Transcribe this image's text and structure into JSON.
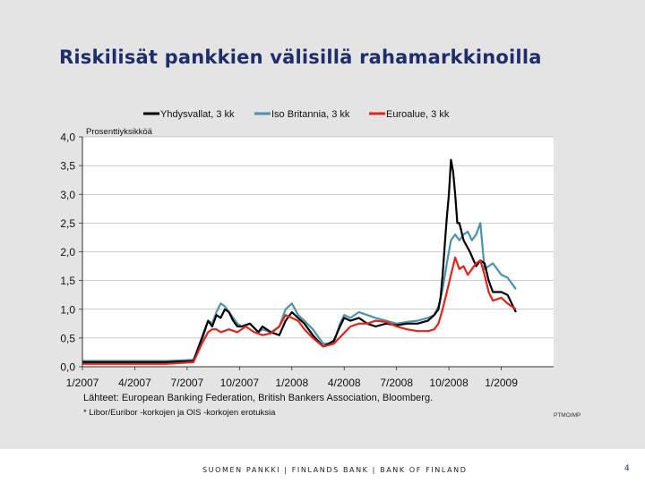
{
  "slide": {
    "title": "Riskilisät pankkien välisillä rahamarkkinoilla",
    "footer": "SUOMEN PANKKI | FINLANDS BANK | BANK OF FINLAND",
    "page_number": "4"
  },
  "chart_data": {
    "type": "line",
    "ylabel": "Prosenttiyksikköä",
    "ylim": [
      0,
      4
    ],
    "yticks": [
      "0,0",
      "0,5",
      "1,0",
      "1,5",
      "2,0",
      "2,5",
      "3,0",
      "3,5",
      "4,0"
    ],
    "xlim": [
      2007.0,
      2009.25
    ],
    "xticks": [
      {
        "x": 2007.0,
        "label": "1/2007"
      },
      {
        "x": 2007.25,
        "label": "4/2007"
      },
      {
        "x": 2007.5,
        "label": "7/2007"
      },
      {
        "x": 2007.75,
        "label": "10/2007"
      },
      {
        "x": 2008.0,
        "label": "1/2008"
      },
      {
        "x": 2008.25,
        "label": "4/2008"
      },
      {
        "x": 2008.5,
        "label": "7/2008"
      },
      {
        "x": 2008.75,
        "label": "10/2008"
      },
      {
        "x": 2009.0,
        "label": "1/2009"
      }
    ],
    "grid": "horizontal",
    "legend": "top",
    "series": [
      {
        "name": "Yhdysvallat, 3 kk",
        "color": "#000000",
        "x": [
          2007.0,
          2007.1,
          2007.25,
          2007.4,
          2007.53,
          2007.57,
          2007.6,
          2007.62,
          2007.64,
          2007.66,
          2007.68,
          2007.7,
          2007.72,
          2007.74,
          2007.76,
          2007.8,
          2007.84,
          2007.86,
          2007.9,
          2007.94,
          2007.97,
          2008.0,
          2008.03,
          2008.06,
          2008.1,
          2008.15,
          2008.2,
          2008.23,
          2008.25,
          2008.28,
          2008.32,
          2008.36,
          2008.4,
          2008.45,
          2008.5,
          2008.55,
          2008.6,
          2008.65,
          2008.68,
          2008.7,
          2008.71,
          2008.72,
          2008.73,
          2008.74,
          2008.75,
          2008.76,
          2008.77,
          2008.78,
          2008.79,
          2008.8,
          2008.82,
          2008.85,
          2008.88,
          2008.9,
          2008.92,
          2008.94,
          2008.96,
          2009.0,
          2009.03,
          2009.05,
          2009.07
        ],
        "values": [
          0.08,
          0.08,
          0.08,
          0.08,
          0.1,
          0.5,
          0.8,
          0.7,
          0.9,
          0.85,
          1.0,
          0.95,
          0.8,
          0.7,
          0.7,
          0.75,
          0.6,
          0.7,
          0.6,
          0.55,
          0.8,
          0.95,
          0.85,
          0.75,
          0.55,
          0.35,
          0.45,
          0.7,
          0.85,
          0.8,
          0.85,
          0.75,
          0.7,
          0.75,
          0.72,
          0.75,
          0.75,
          0.8,
          0.9,
          1.0,
          1.2,
          1.6,
          2.1,
          2.6,
          3.0,
          3.6,
          3.4,
          3.0,
          2.5,
          2.5,
          2.2,
          2.0,
          1.75,
          1.85,
          1.8,
          1.5,
          1.3,
          1.3,
          1.25,
          1.1,
          0.95
        ]
      },
      {
        "name": "Iso Britannia, 3 kk",
        "color": "#4a93a8",
        "x": [
          2007.0,
          2007.1,
          2007.25,
          2007.4,
          2007.53,
          2007.57,
          2007.6,
          2007.62,
          2007.64,
          2007.66,
          2007.68,
          2007.7,
          2007.72,
          2007.74,
          2007.76,
          2007.8,
          2007.84,
          2007.86,
          2007.9,
          2007.94,
          2007.97,
          2008.0,
          2008.03,
          2008.06,
          2008.1,
          2008.15,
          2008.2,
          2008.23,
          2008.25,
          2008.28,
          2008.32,
          2008.36,
          2008.4,
          2008.45,
          2008.5,
          2008.55,
          2008.6,
          2008.65,
          2008.68,
          2008.7,
          2008.72,
          2008.74,
          2008.76,
          2008.78,
          2008.8,
          2008.82,
          2008.84,
          2008.86,
          2008.88,
          2008.9,
          2008.92,
          2008.94,
          2008.96,
          2009.0,
          2009.03,
          2009.05,
          2009.07
        ],
        "values": [
          0.1,
          0.1,
          0.1,
          0.1,
          0.12,
          0.45,
          0.8,
          0.75,
          0.95,
          1.1,
          1.05,
          0.95,
          0.85,
          0.75,
          0.7,
          0.75,
          0.6,
          0.65,
          0.6,
          0.7,
          1.0,
          1.1,
          0.9,
          0.8,
          0.65,
          0.4,
          0.4,
          0.75,
          0.9,
          0.85,
          0.95,
          0.9,
          0.85,
          0.8,
          0.75,
          0.78,
          0.8,
          0.85,
          0.9,
          1.05,
          1.35,
          1.8,
          2.2,
          2.3,
          2.2,
          2.3,
          2.35,
          2.2,
          2.3,
          2.5,
          1.7,
          1.75,
          1.8,
          1.6,
          1.55,
          1.45,
          1.35
        ]
      },
      {
        "name": "Euroalue, 3 kk",
        "color": "#e0251d",
        "x": [
          2007.0,
          2007.1,
          2007.25,
          2007.4,
          2007.53,
          2007.57,
          2007.6,
          2007.62,
          2007.64,
          2007.66,
          2007.7,
          2007.74,
          2007.78,
          2007.82,
          2007.86,
          2007.9,
          2007.94,
          2007.97,
          2008.0,
          2008.03,
          2008.06,
          2008.1,
          2008.15,
          2008.2,
          2008.24,
          2008.28,
          2008.32,
          2008.36,
          2008.4,
          2008.45,
          2008.5,
          2008.55,
          2008.6,
          2008.65,
          2008.68,
          2008.7,
          2008.72,
          2008.74,
          2008.76,
          2008.78,
          2008.8,
          2008.82,
          2008.84,
          2008.86,
          2008.88,
          2008.9,
          2008.92,
          2008.94,
          2008.96,
          2009.0,
          2009.03,
          2009.05,
          2009.07
        ],
        "values": [
          0.05,
          0.05,
          0.05,
          0.05,
          0.08,
          0.4,
          0.6,
          0.65,
          0.65,
          0.6,
          0.65,
          0.6,
          0.7,
          0.6,
          0.55,
          0.58,
          0.7,
          0.9,
          0.85,
          0.8,
          0.65,
          0.5,
          0.35,
          0.4,
          0.55,
          0.7,
          0.75,
          0.75,
          0.8,
          0.78,
          0.7,
          0.65,
          0.62,
          0.62,
          0.65,
          0.75,
          1.0,
          1.3,
          1.6,
          1.9,
          1.7,
          1.75,
          1.6,
          1.7,
          1.8,
          1.85,
          1.6,
          1.3,
          1.15,
          1.2,
          1.1,
          1.05,
          1.0
        ]
      }
    ]
  },
  "notes": {
    "source": "Lähteet: European Banking Federation, British Bankers Association, Bloomberg.",
    "footnote": "* Libor/Euribor -korkojen ja OIS -korkojen erotuksia",
    "code": "PTMO/MP"
  }
}
